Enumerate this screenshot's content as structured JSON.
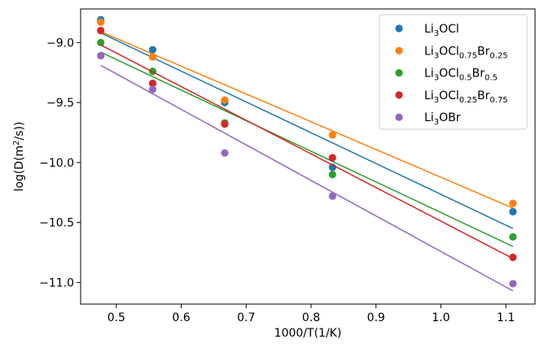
{
  "chart_data": {
    "type": "scatter",
    "title": "",
    "xlabel": "1000/T(1/K)",
    "ylabel": "log(D(m²/s))",
    "xlim": [
      0.445,
      1.145
    ],
    "ylim": [
      -11.18,
      -8.72
    ],
    "xticks": [
      0.5,
      0.6,
      0.7,
      0.8,
      0.9,
      1.0,
      1.1
    ],
    "xtick_labels": [
      "0.5",
      "0.6",
      "0.7",
      "0.8",
      "0.9",
      "1.0",
      "1.1"
    ],
    "yticks": [
      -9.0,
      -9.5,
      -10.0,
      -10.5,
      -11.0
    ],
    "ytick_labels": [
      "−9.0",
      "−9.5",
      "−10.0",
      "−10.5",
      "−11.0"
    ],
    "grid": false,
    "legend_position": "top-right",
    "series": [
      {
        "name": "Li3OCl",
        "legend": {
          "base": "Li",
          "parts": [
            {
              "t": "3",
              "sub": true
            },
            {
              "t": "OCl",
              "sub": false
            }
          ]
        },
        "color": "#1f77b4",
        "x": [
          0.476,
          0.556,
          0.667,
          0.833,
          1.111
        ],
        "y": [
          -8.81,
          -9.06,
          -9.5,
          -10.04,
          -10.41
        ],
        "fit_x": [
          0.476,
          1.111
        ],
        "fit_y": [
          -8.92,
          -10.55
        ]
      },
      {
        "name": "Li3OCl0.75Br0.25",
        "legend": {
          "base": "Li",
          "parts": [
            {
              "t": "3",
              "sub": true
            },
            {
              "t": "OCl",
              "sub": false
            },
            {
              "t": "0.75",
              "sub": true
            },
            {
              "t": "Br",
              "sub": false
            },
            {
              "t": "0.25",
              "sub": true
            }
          ]
        },
        "color": "#ff7f0e",
        "x": [
          0.476,
          0.556,
          0.667,
          0.833,
          1.111
        ],
        "y": [
          -8.83,
          -9.12,
          -9.48,
          -9.77,
          -10.34
        ],
        "fit_x": [
          0.476,
          1.111
        ],
        "fit_y": [
          -8.91,
          -10.38
        ]
      },
      {
        "name": "Li3OCl0.5Br0.5",
        "legend": {
          "base": "Li",
          "parts": [
            {
              "t": "3",
              "sub": true
            },
            {
              "t": "OCl",
              "sub": false
            },
            {
              "t": "0.5",
              "sub": true
            },
            {
              "t": "Br",
              "sub": false
            },
            {
              "t": "0.5",
              "sub": true
            }
          ]
        },
        "color": "#2ca02c",
        "x": [
          0.476,
          0.556,
          0.667,
          0.833,
          1.111
        ],
        "y": [
          -9.0,
          -9.24,
          -9.67,
          -10.1,
          -10.62
        ],
        "fit_x": [
          0.476,
          1.111
        ],
        "fit_y": [
          -9.08,
          -10.7
        ]
      },
      {
        "name": "Li3OCl0.25Br0.75",
        "legend": {
          "base": "Li",
          "parts": [
            {
              "t": "3",
              "sub": true
            },
            {
              "t": "OCl",
              "sub": false
            },
            {
              "t": "0.25",
              "sub": true
            },
            {
              "t": "Br",
              "sub": false
            },
            {
              "t": "0.75",
              "sub": true
            }
          ]
        },
        "color": "#d62728",
        "x": [
          0.476,
          0.556,
          0.667,
          0.833,
          1.111
        ],
        "y": [
          -8.9,
          -9.34,
          -9.68,
          -9.96,
          -10.79
        ],
        "fit_x": [
          0.476,
          1.111
        ],
        "fit_y": [
          -9.02,
          -10.8
        ]
      },
      {
        "name": "Li3OBr",
        "legend": {
          "base": "Li",
          "parts": [
            {
              "t": "3",
              "sub": true
            },
            {
              "t": "OBr",
              "sub": false
            }
          ]
        },
        "color": "#9467bd",
        "x": [
          0.476,
          0.556,
          0.667,
          0.833,
          1.111
        ],
        "y": [
          -9.11,
          -9.39,
          -9.92,
          -10.28,
          -11.01
        ],
        "fit_x": [
          0.476,
          1.111
        ],
        "fit_y": [
          -9.19,
          -11.07
        ]
      }
    ]
  }
}
